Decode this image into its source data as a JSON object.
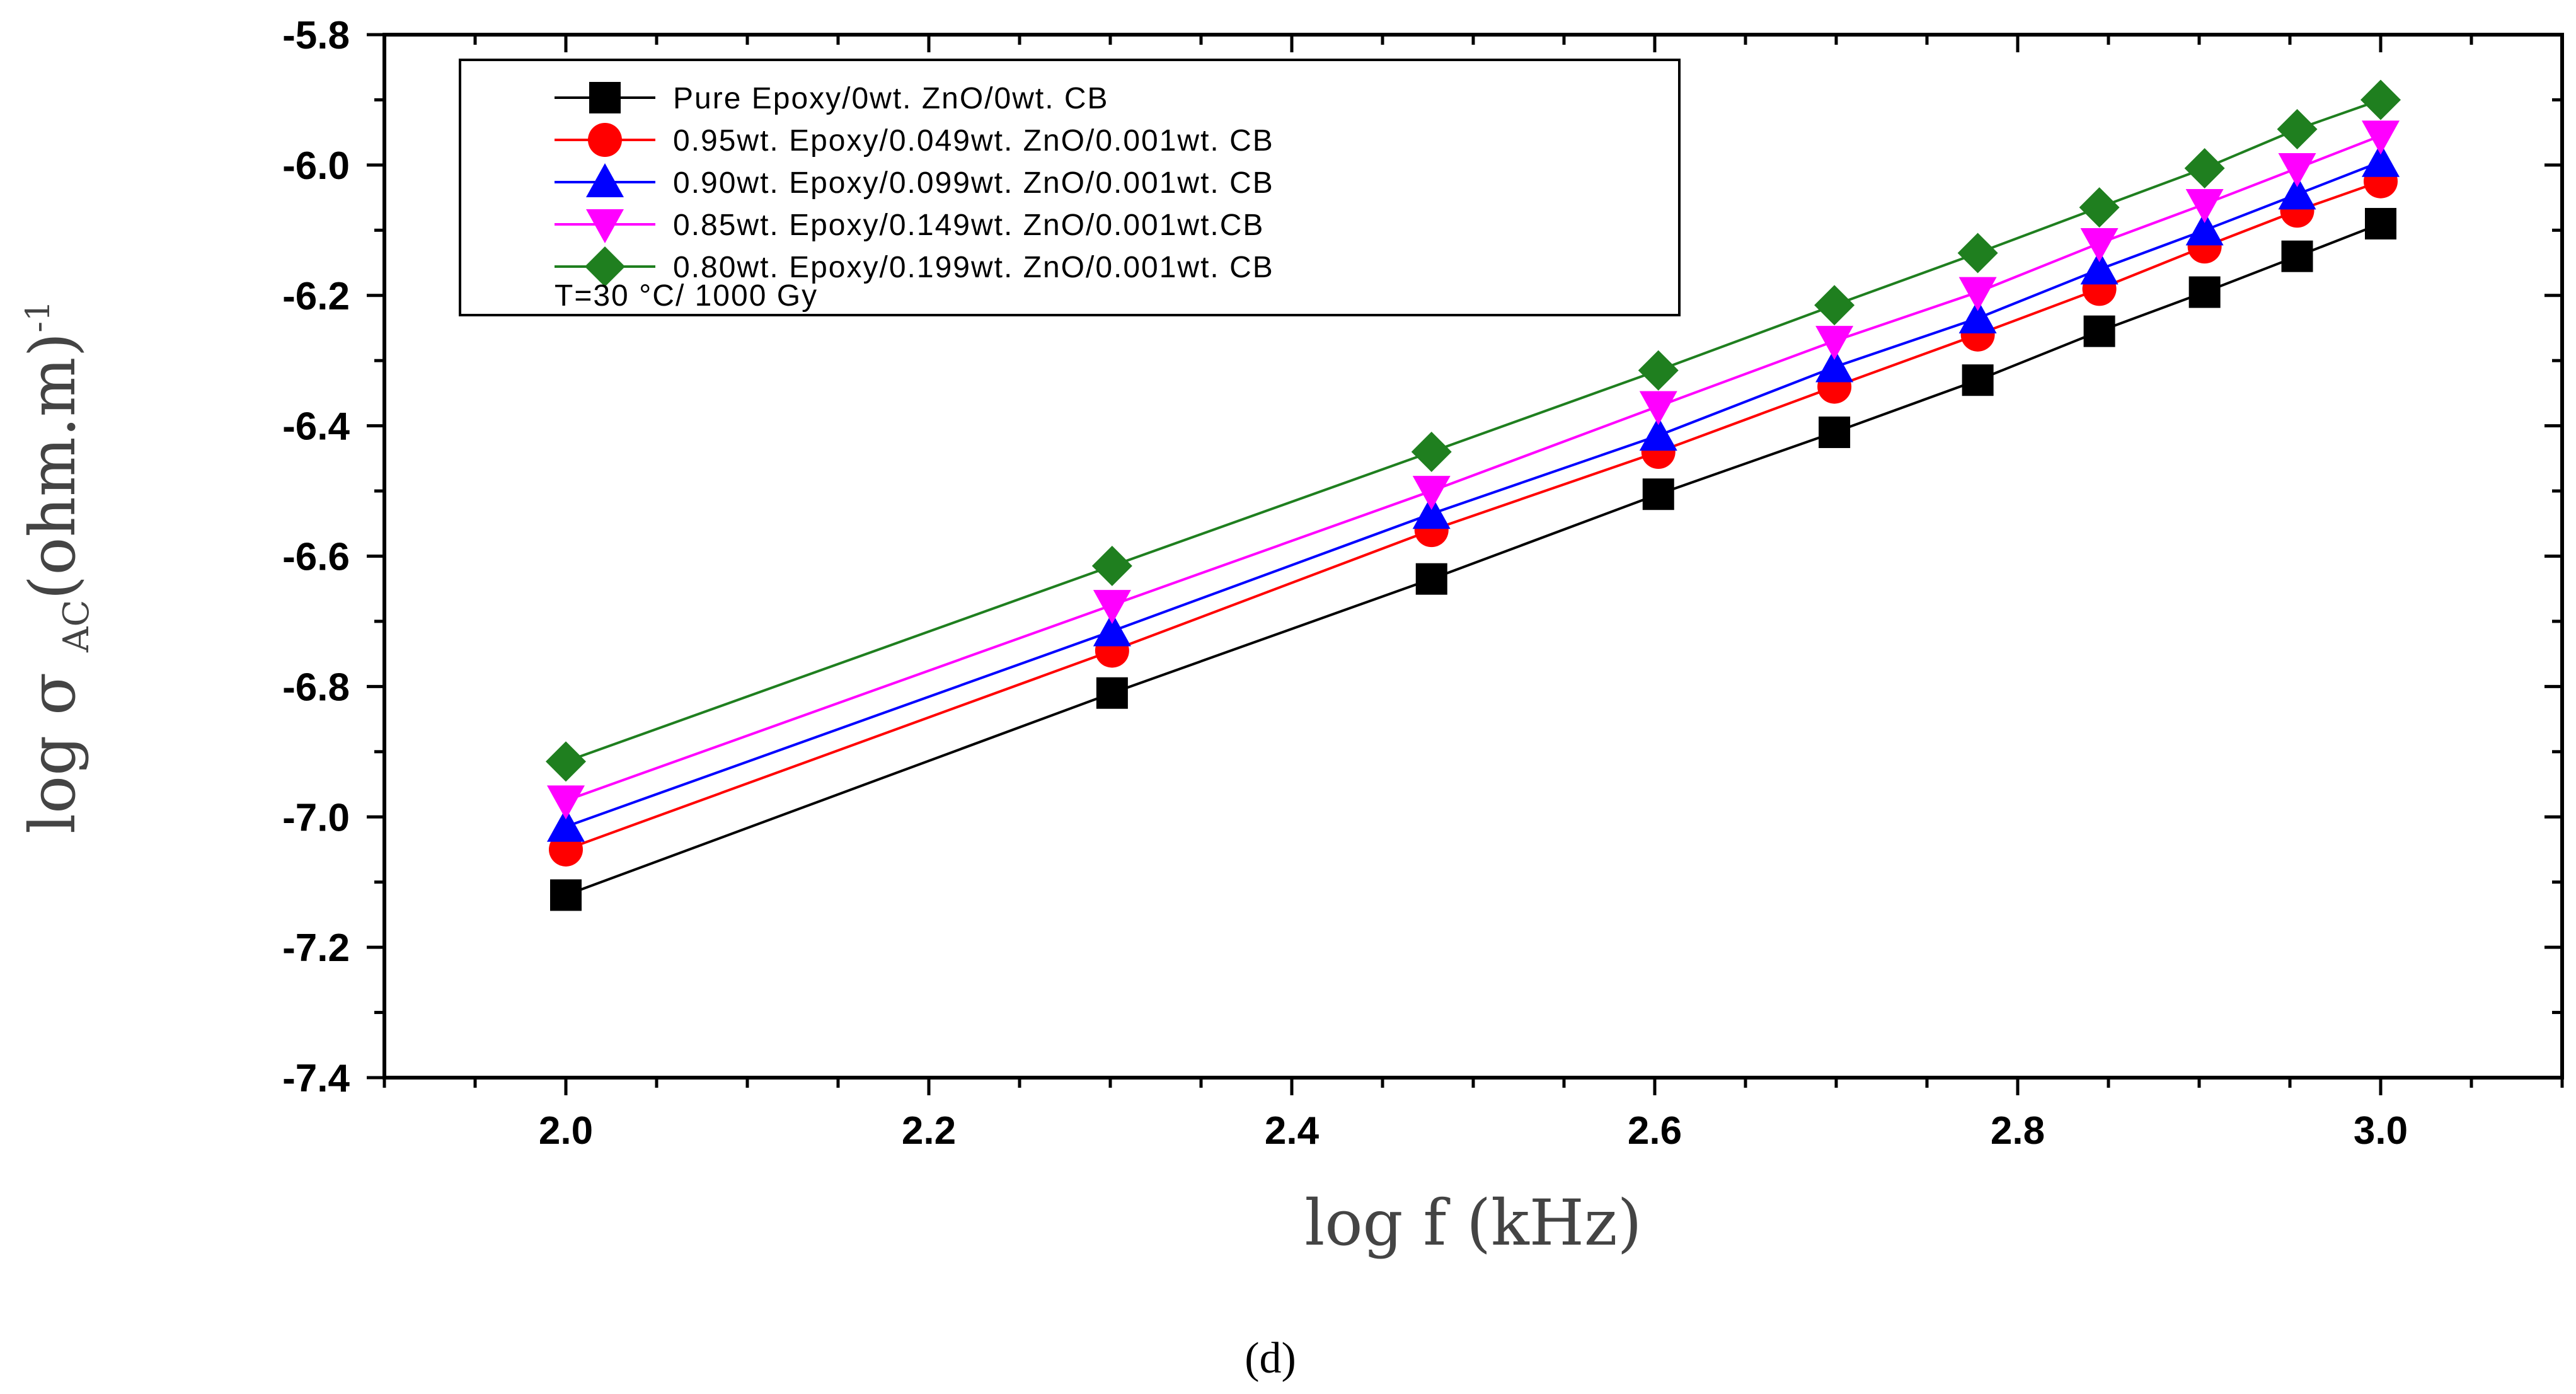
{
  "chart_data": {
    "type": "line",
    "x": [
      2.0,
      2.301,
      2.477,
      2.602,
      2.699,
      2.778,
      2.845,
      2.903,
      2.954,
      3.0
    ],
    "series": [
      {
        "name": "Pure Epoxy/0wt. ZnO/0wt. CB",
        "color": "#000000",
        "marker": "square",
        "values": [
          -7.12,
          -6.81,
          -6.635,
          -6.505,
          -6.41,
          -6.33,
          -6.255,
          -6.195,
          -6.14,
          -6.09
        ]
      },
      {
        "name": "0.95wt. Epoxy/0.049wt. ZnO/0.001wt. CB",
        "color": "#ff0000",
        "marker": "circle",
        "values": [
          -7.05,
          -6.745,
          -6.56,
          -6.44,
          -6.34,
          -6.26,
          -6.19,
          -6.125,
          -6.07,
          -6.025
        ]
      },
      {
        "name": "0.90wt. Epoxy/0.099wt. ZnO/0.001wt. CB",
        "color": "#0000ff",
        "marker": "triangle-up",
        "values": [
          -7.015,
          -6.715,
          -6.535,
          -6.415,
          -6.31,
          -6.235,
          -6.16,
          -6.1,
          -6.045,
          -5.995
        ]
      },
      {
        "name": "0.85wt. Epoxy/0.149wt. ZnO/0.001wt.CB",
        "color": "#ff00ff",
        "marker": "triangle-down",
        "values": [
          -6.975,
          -6.675,
          -6.5,
          -6.37,
          -6.27,
          -6.195,
          -6.12,
          -6.06,
          -6.005,
          -5.955
        ]
      },
      {
        "name": "0.80wt. Epoxy/0.199wt. ZnO/0.001wt. CB",
        "color": "#1f7f1f",
        "marker": "diamond",
        "values": [
          -6.915,
          -6.615,
          -6.44,
          -6.315,
          -6.215,
          -6.135,
          -6.065,
          -6.005,
          -5.945,
          -5.9
        ]
      }
    ],
    "annotation": "T=30 °C/ 1000 Gy",
    "xlabel": "log f (kHz)",
    "ylabel_main": "log σ",
    "ylabel_sub": "AC",
    "ylabel_unit": "(ohm.m)",
    "ylabel_sup": "-1",
    "xlim": [
      1.9,
      3.1
    ],
    "ylim": [
      -7.4,
      -5.8
    ],
    "xticks": [
      2.0,
      2.2,
      2.4,
      2.6,
      2.8,
      3.0
    ],
    "xtick_labels": [
      "2.0",
      "2.2",
      "2.4",
      "2.6",
      "2.8",
      "3.0"
    ],
    "yticks": [
      -5.8,
      -6.0,
      -6.2,
      -6.4,
      -6.6,
      -6.8,
      -7.0,
      -7.2,
      -7.4
    ],
    "ytick_labels": [
      "-5.8",
      "-6.0",
      "-6.2",
      "-6.4",
      "-6.6",
      "-6.8",
      "-7.0",
      "-7.2",
      "-7.4"
    ],
    "grid": false,
    "legend_position": "top-left"
  },
  "caption": "(d)"
}
